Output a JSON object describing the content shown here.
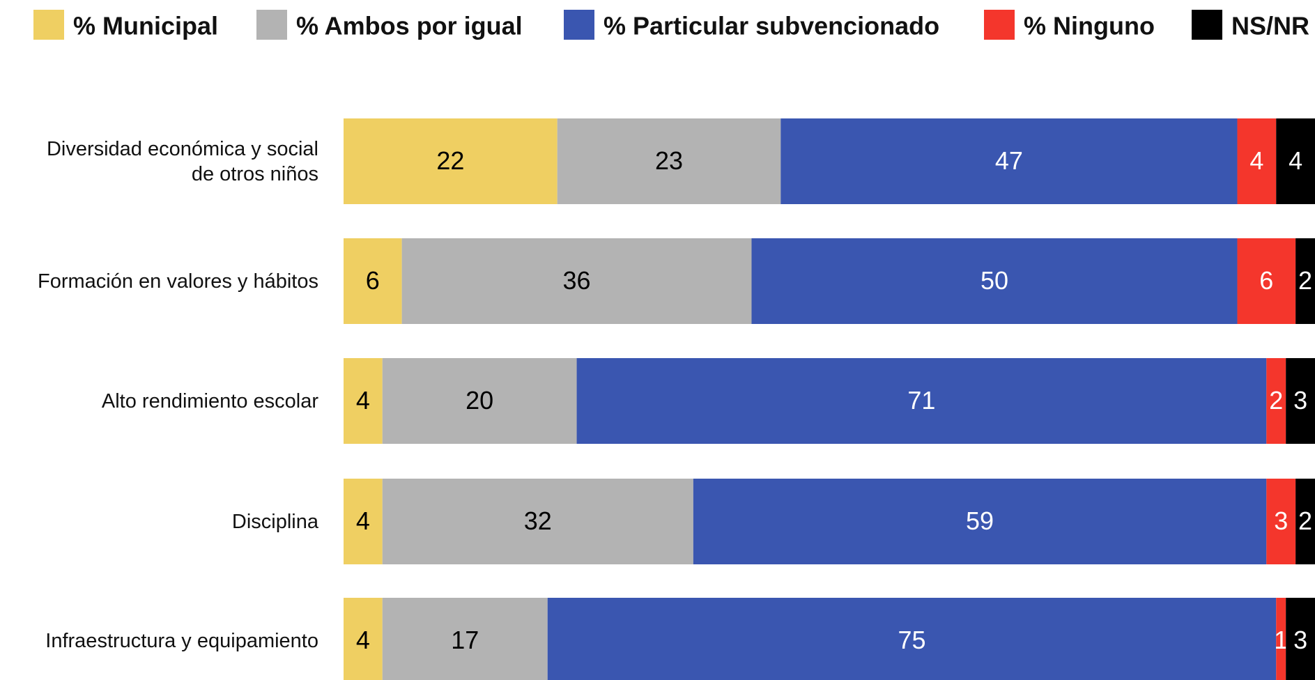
{
  "chart_data": {
    "type": "bar",
    "orientation": "horizontal",
    "stacked": true,
    "categories": [
      "Diversidad económica y social\nde otros niños",
      "Formación en valores y hábitos",
      "Alto rendimiento escolar",
      "Disciplina",
      "Infraestructura y equipamiento"
    ],
    "series": [
      {
        "name": "% Municipal",
        "color": "#efcf62",
        "label_color": "#000000",
        "values": [
          22,
          6,
          4,
          4,
          4
        ]
      },
      {
        "name": "% Ambos por igual",
        "color": "#b3b3b3",
        "label_color": "#000000",
        "values": [
          23,
          36,
          20,
          32,
          17
        ]
      },
      {
        "name": "% Particular subvencionado",
        "color": "#3a56b0",
        "label_color": "#ffffff",
        "values": [
          47,
          50,
          71,
          59,
          75
        ]
      },
      {
        "name": "% Ninguno",
        "color": "#f4362c",
        "label_color": "#ffffff",
        "values": [
          4,
          6,
          2,
          3,
          1
        ]
      },
      {
        "name": "NS/NR",
        "color": "#000000",
        "label_color": "#ffffff",
        "values": [
          4,
          2,
          3,
          2,
          3
        ]
      }
    ],
    "legend": "top"
  }
}
